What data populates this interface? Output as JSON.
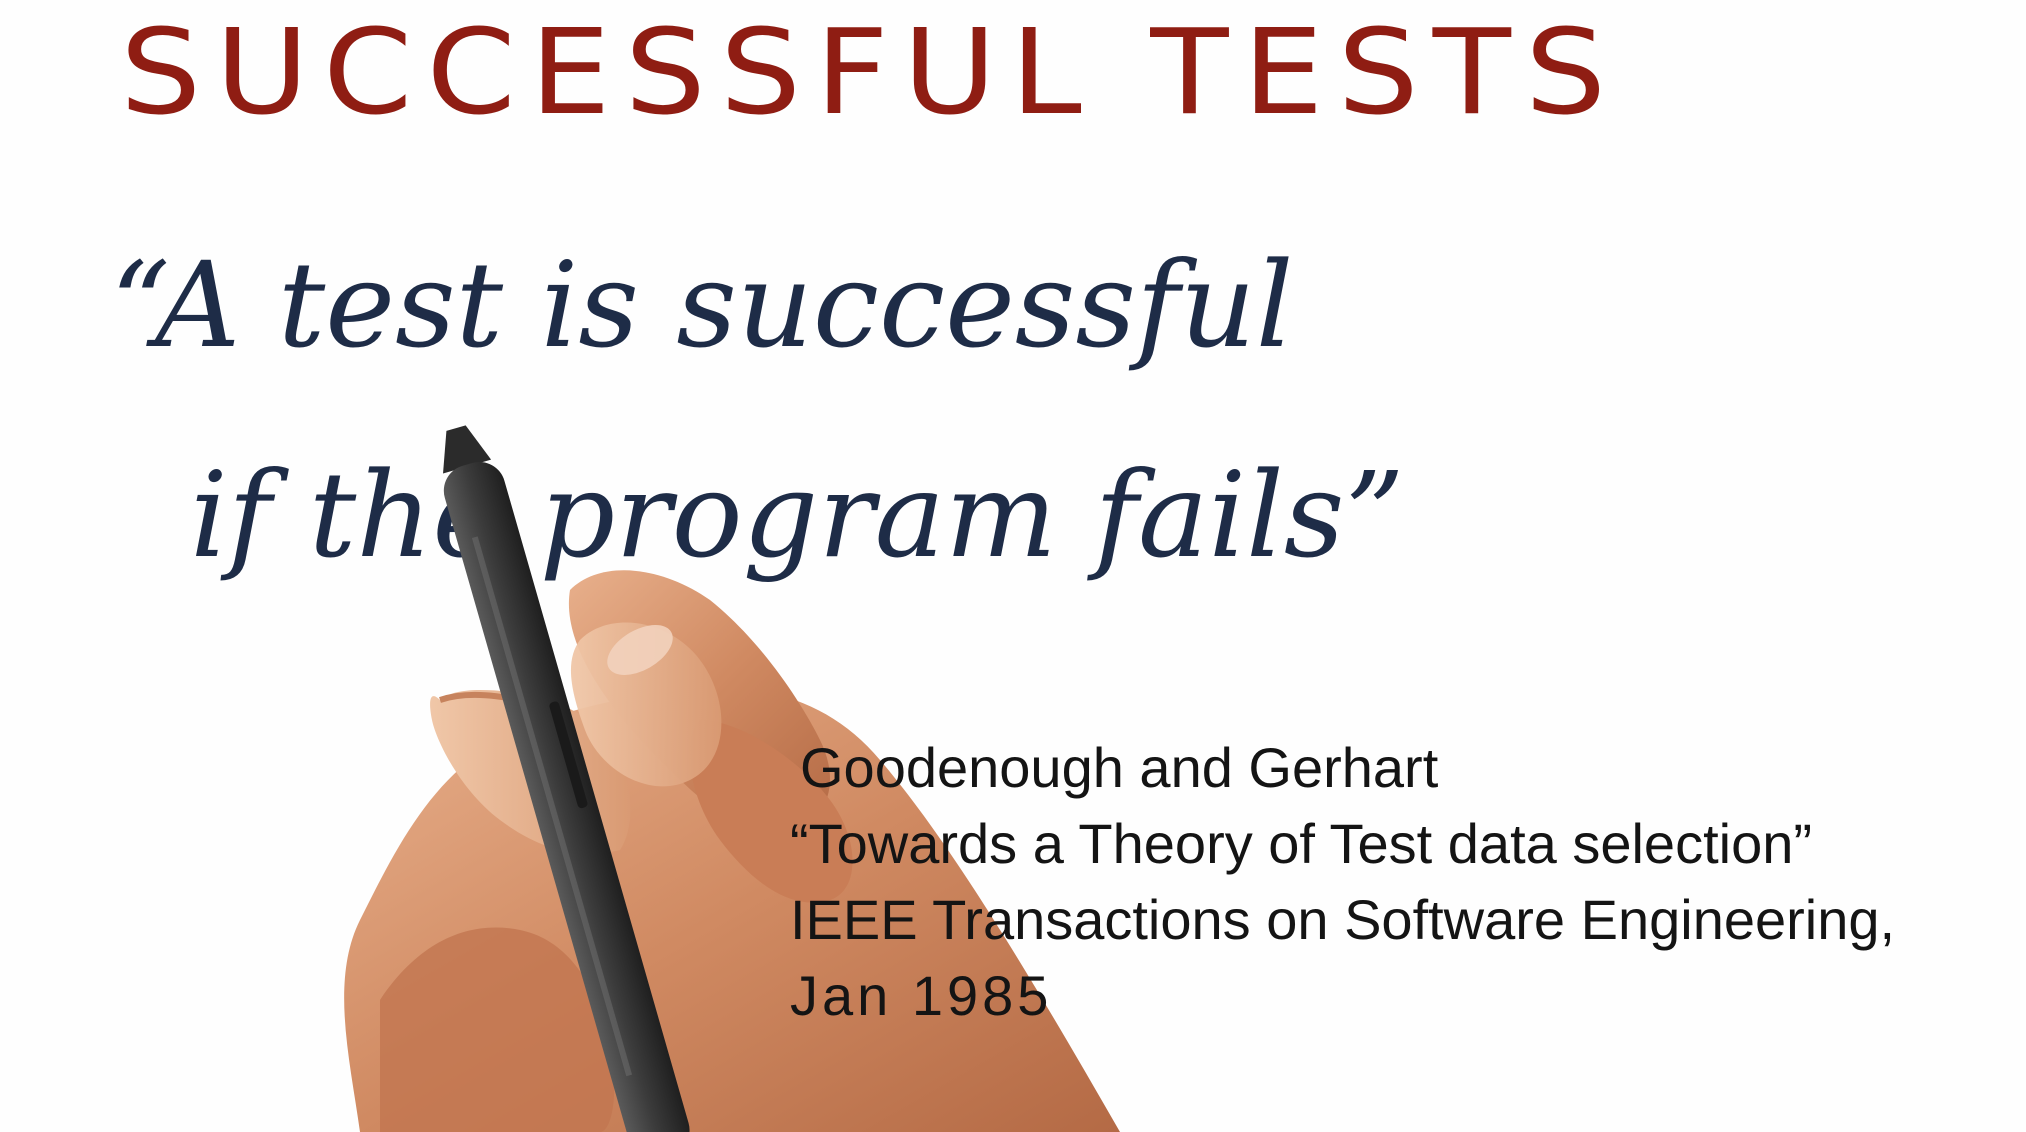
{
  "title": "SUCCESSFUL TESTS",
  "quote": {
    "line1": "“A test is successful",
    "line2": "if the program fails”"
  },
  "citation": {
    "authors": "Goodenough and Gerhart",
    "paper": "“Towards a Theory of Test data selection”",
    "venue": "IEEE Transactions on Software Engineering,",
    "date": "Jan 1985"
  },
  "colors": {
    "title": "#8f1d13",
    "quote": "#1e2c47",
    "citation": "#141414",
    "background": "#fefefe"
  },
  "image": {
    "subject": "hand holding a stylus writing on a whiteboard"
  }
}
